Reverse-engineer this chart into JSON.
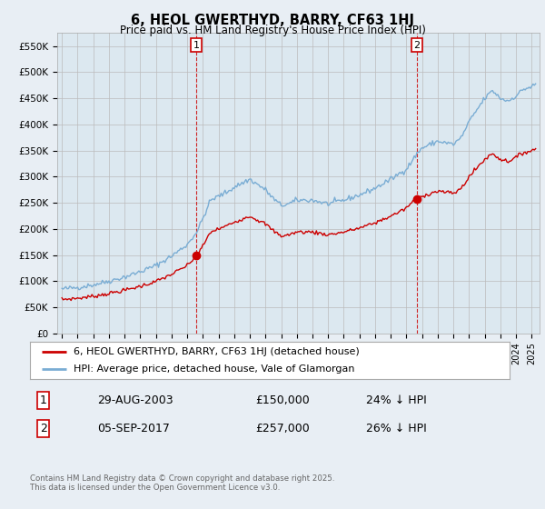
{
  "title": "6, HEOL GWERTHYD, BARRY, CF63 1HJ",
  "subtitle": "Price paid vs. HM Land Registry's House Price Index (HPI)",
  "legend_house": "6, HEOL GWERTHYD, BARRY, CF63 1HJ (detached house)",
  "legend_hpi": "HPI: Average price, detached house, Vale of Glamorgan",
  "transaction1_date": "29-AUG-2003",
  "transaction1_price": 150000,
  "transaction1_pct": "24% ↓ HPI",
  "transaction2_date": "05-SEP-2017",
  "transaction2_price": 257000,
  "transaction2_pct": "26% ↓ HPI",
  "footer": "Contains HM Land Registry data © Crown copyright and database right 2025.\nThis data is licensed under the Open Government Licence v3.0.",
  "house_color": "#cc0000",
  "hpi_color": "#7aadd4",
  "background_color": "#e8eef4",
  "plot_bg": "#dce8f0",
  "vline_color": "#cc0000",
  "ylim": [
    0,
    575000
  ],
  "yticks": [
    0,
    50000,
    100000,
    150000,
    200000,
    250000,
    300000,
    350000,
    400000,
    450000,
    500000,
    550000
  ],
  "xlim_start": 1994.7,
  "xlim_end": 2025.5
}
